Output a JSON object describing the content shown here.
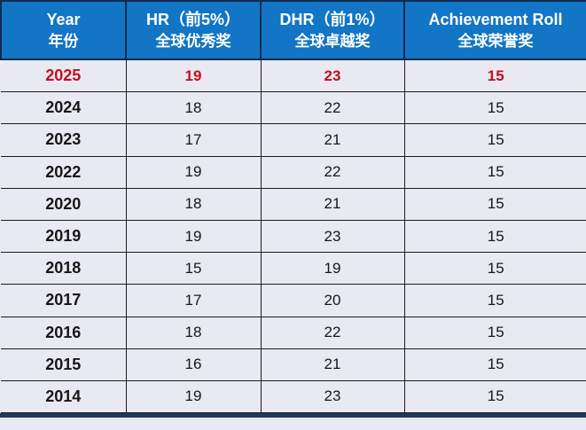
{
  "colors": {
    "header_bg": "#1275c6",
    "header_text": "#ffffff",
    "header_border": "#0e2a4d",
    "row_bg": "#e9e9f1",
    "body_text": "#161616",
    "grid_color": "#1c1c1c",
    "highlight_color": "#c1101f",
    "bottom_bar": "#1f3a5f"
  },
  "chart_data": {
    "type": "table",
    "title": "",
    "columns": [
      {
        "title_en": "Year",
        "title_zh": "年份"
      },
      {
        "title_en": "HR（前5%）",
        "title_zh": "全球优秀奖"
      },
      {
        "title_en": "DHR（前1%）",
        "title_zh": "全球卓越奖"
      },
      {
        "title_en": "Achievement Roll",
        "title_zh": "全球荣誉奖"
      }
    ],
    "rows": [
      {
        "cells": [
          "2025",
          "19",
          "23",
          "15"
        ],
        "highlight": true
      },
      {
        "cells": [
          "2024",
          "18",
          "22",
          "15"
        ],
        "highlight": false
      },
      {
        "cells": [
          "2023",
          "17",
          "21",
          "15"
        ],
        "highlight": false
      },
      {
        "cells": [
          "2022",
          "19",
          "22",
          "15"
        ],
        "highlight": false
      },
      {
        "cells": [
          "2020",
          "18",
          "21",
          "15"
        ],
        "highlight": false
      },
      {
        "cells": [
          "2019",
          "19",
          "23",
          "15"
        ],
        "highlight": false
      },
      {
        "cells": [
          "2018",
          "15",
          "19",
          "15"
        ],
        "highlight": false
      },
      {
        "cells": [
          "2017",
          "17",
          "20",
          "15"
        ],
        "highlight": false
      },
      {
        "cells": [
          "2016",
          "18",
          "22",
          "15"
        ],
        "highlight": false
      },
      {
        "cells": [
          "2015",
          "16",
          "21",
          "15"
        ],
        "highlight": false
      },
      {
        "cells": [
          "2014",
          "19",
          "23",
          "15"
        ],
        "highlight": false
      }
    ]
  }
}
